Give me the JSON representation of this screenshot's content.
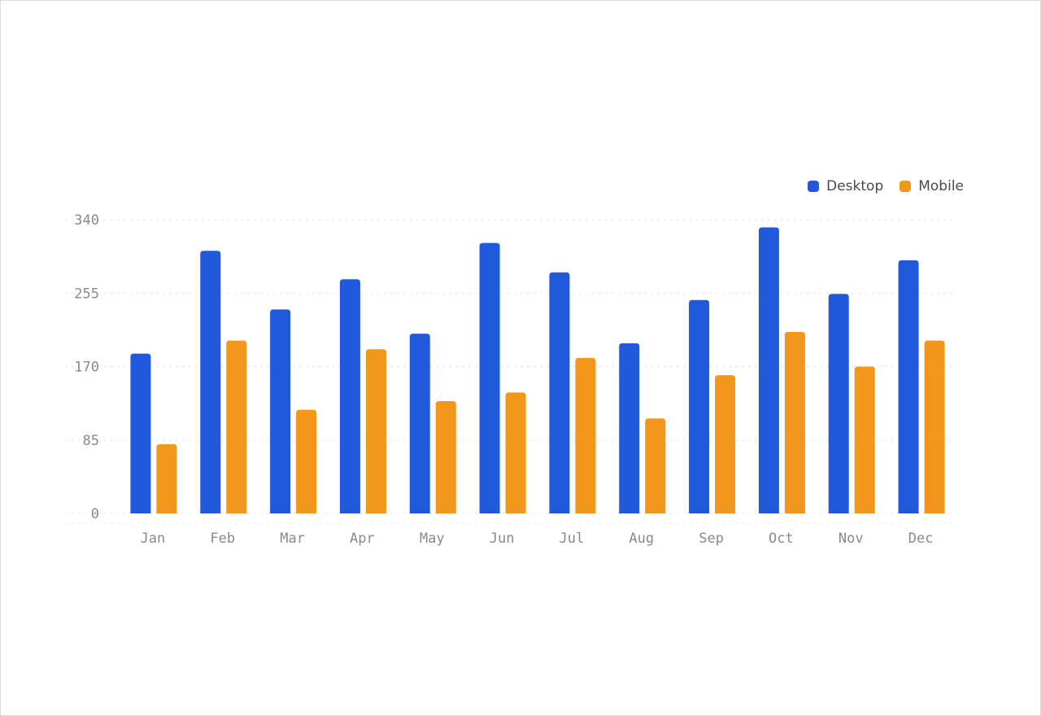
{
  "chart_data": {
    "type": "bar",
    "categories": [
      "Jan",
      "Feb",
      "Mar",
      "Apr",
      "May",
      "Jun",
      "Jul",
      "Aug",
      "Sep",
      "Oct",
      "Nov",
      "Dec"
    ],
    "series": [
      {
        "name": "Desktop",
        "color": "#2159dc",
        "values": [
          185,
          304,
          236,
          271,
          208,
          313,
          279,
          197,
          247,
          331,
          254,
          293
        ]
      },
      {
        "name": "Mobile",
        "color": "#f2961c",
        "values": [
          80,
          200,
          120,
          190,
          130,
          140,
          180,
          110,
          160,
          210,
          170,
          200
        ]
      }
    ],
    "y_ticks": [
      "0",
      "85",
      "170",
      "255",
      "340"
    ],
    "ylim": [
      0,
      340
    ],
    "grid": true,
    "legend_position": "top-right",
    "title": "",
    "xlabel": "",
    "ylabel": ""
  }
}
